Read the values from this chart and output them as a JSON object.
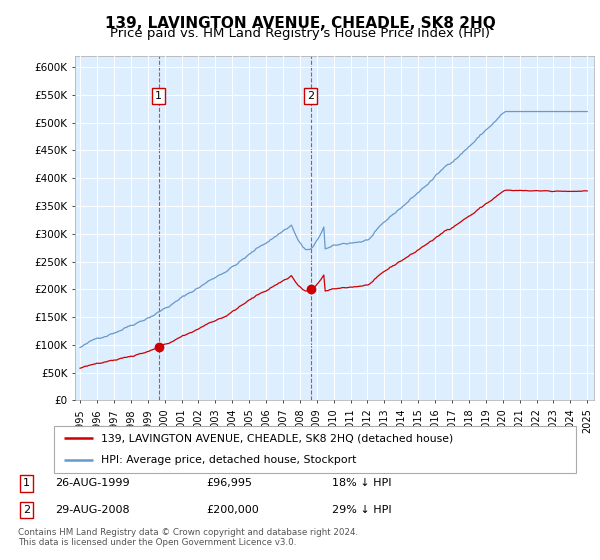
{
  "title": "139, LAVINGTON AVENUE, CHEADLE, SK8 2HQ",
  "subtitle": "Price paid vs. HM Land Registry's House Price Index (HPI)",
  "ylim": [
    0,
    620000
  ],
  "xlim_start": 1994.7,
  "xlim_end": 2025.4,
  "sale1_date": 1999.65,
  "sale1_price": 96995,
  "sale1_label": "1",
  "sale1_date_str": "26-AUG-1999",
  "sale1_price_str": "£96,995",
  "sale1_hpi_str": "18% ↓ HPI",
  "sale2_date": 2008.65,
  "sale2_price": 200000,
  "sale2_label": "2",
  "sale2_date_str": "29-AUG-2008",
  "sale2_price_str": "£200,000",
  "sale2_hpi_str": "29% ↓ HPI",
  "line_color_red": "#cc0000",
  "line_color_blue": "#6699cc",
  "plot_bg_color": "#ddeeff",
  "legend_line1": "139, LAVINGTON AVENUE, CHEADLE, SK8 2HQ (detached house)",
  "legend_line2": "HPI: Average price, detached house, Stockport",
  "footer": "Contains HM Land Registry data © Crown copyright and database right 2024.\nThis data is licensed under the Open Government Licence v3.0.",
  "title_fontsize": 11,
  "subtitle_fontsize": 9.5
}
